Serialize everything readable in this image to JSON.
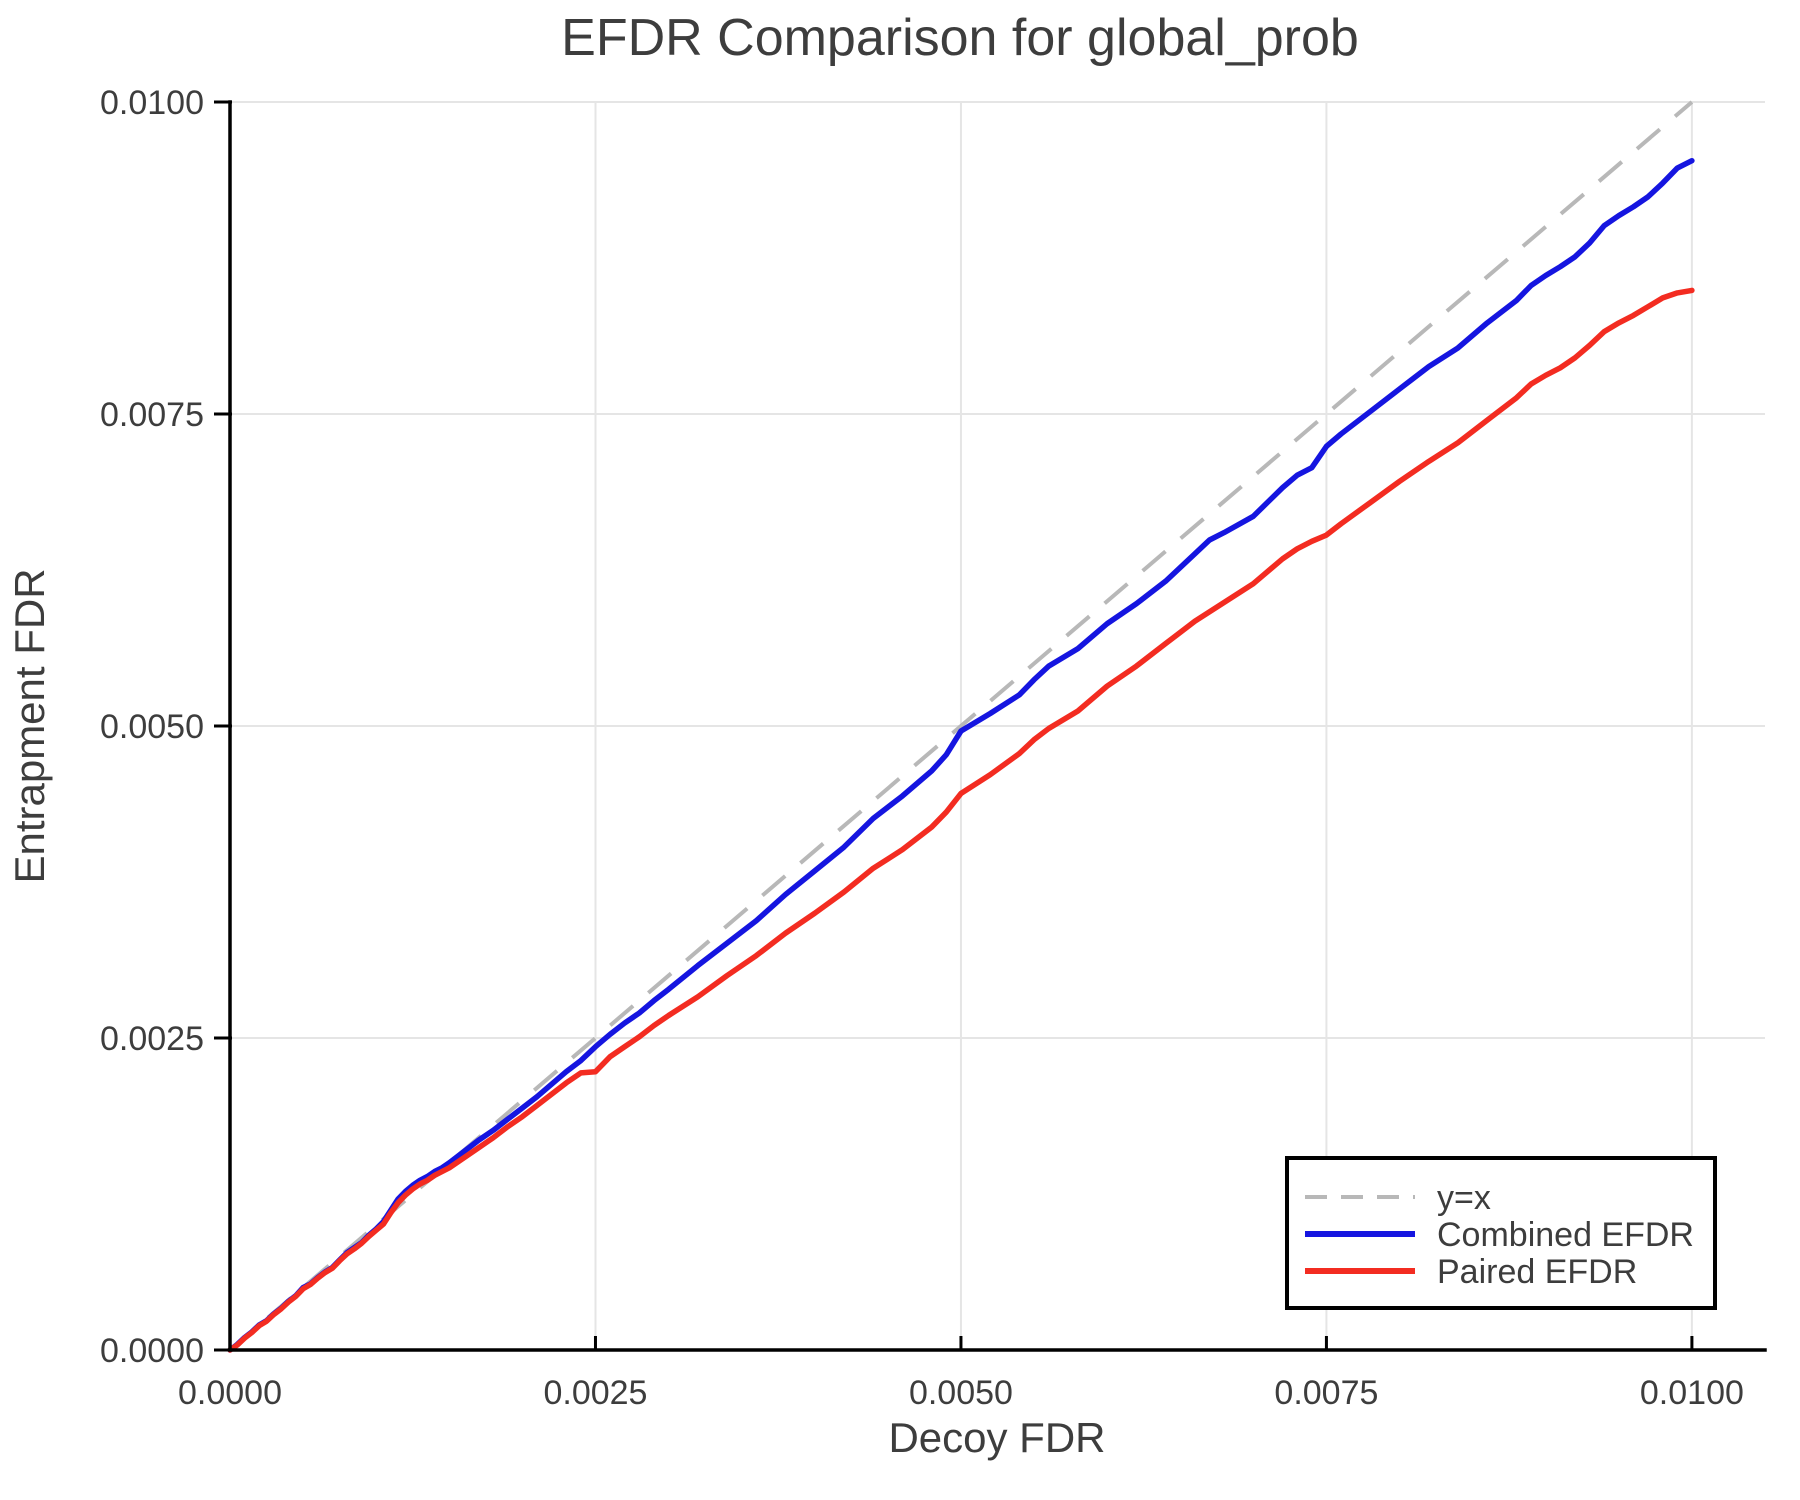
{
  "chart_data": {
    "type": "line",
    "title": "EFDR Comparison for global_prob",
    "xlabel": "Decoy FDR",
    "ylabel": "Entrapment FDR",
    "xlim": [
      0.0,
      0.0105
    ],
    "ylim": [
      0.0,
      0.01
    ],
    "grid": true,
    "legend_position": "bottom-right",
    "x_ticks": {
      "values": [
        0.0,
        0.0025,
        0.005,
        0.0075,
        0.01
      ],
      "labels": [
        "0.0000",
        "0.0025",
        "0.0050",
        "0.0075",
        "0.0100"
      ]
    },
    "y_ticks": {
      "values": [
        0.0,
        0.0025,
        0.005,
        0.0075,
        0.01
      ],
      "labels": [
        "0.0000",
        "0.0025",
        "0.0050",
        "0.0075",
        "0.0100"
      ]
    },
    "colors": {
      "grid": "#e5e5e5",
      "spine": "#000000",
      "text": "#3d3d3d",
      "identity": "#b8b8b8",
      "combined": "#1515e0",
      "paired": "#f32c21",
      "legend_border": "#000000",
      "legend_bg": "#ffffff"
    },
    "series": [
      {
        "name": "y=x",
        "style": "dashed",
        "color": "#b8b8b8",
        "points": [
          [
            0.0,
            0.0
          ],
          [
            0.01,
            0.01
          ]
        ]
      },
      {
        "name": "Combined EFDR",
        "style": "solid",
        "color": "#1515e0",
        "points": [
          [
            0.0,
            0.0
          ],
          [
            5e-05,
            4.5e-05
          ],
          [
            0.0001,
            0.0001
          ],
          [
            0.00015,
            0.000145
          ],
          [
            0.0002,
            0.0002
          ],
          [
            0.00025,
            0.000235
          ],
          [
            0.0003,
            0.00029
          ],
          [
            0.00035,
            0.000335
          ],
          [
            0.0004,
            0.00039
          ],
          [
            0.00045,
            0.000435
          ],
          [
            0.0005,
            0.0005
          ],
          [
            0.00055,
            0.00053
          ],
          [
            0.0006,
            0.00058
          ],
          [
            0.00065,
            0.000625
          ],
          [
            0.0007,
            0.00066
          ],
          [
            0.00075,
            0.00072
          ],
          [
            0.0008,
            0.00078
          ],
          [
            0.00085,
            0.00082
          ],
          [
            0.0009,
            0.00086
          ],
          [
            0.00095,
            0.00092
          ],
          [
            0.001,
            0.00097
          ],
          [
            0.00105,
            0.00103
          ],
          [
            0.0011,
            0.00112
          ],
          [
            0.00115,
            0.00121
          ],
          [
            0.0012,
            0.00127
          ],
          [
            0.00125,
            0.00132
          ],
          [
            0.0013,
            0.00136
          ],
          [
            0.00135,
            0.00139
          ],
          [
            0.0014,
            0.00143
          ],
          [
            0.00145,
            0.00146
          ],
          [
            0.0015,
            0.0015
          ],
          [
            0.0016,
            0.00159
          ],
          [
            0.0017,
            0.00168
          ],
          [
            0.0018,
            0.00176
          ],
          [
            0.0019,
            0.00185
          ],
          [
            0.002,
            0.00194
          ],
          [
            0.0021,
            0.00203
          ],
          [
            0.0022,
            0.00213
          ],
          [
            0.0023,
            0.00223
          ],
          [
            0.0024,
            0.00232
          ],
          [
            0.0025,
            0.00243
          ],
          [
            0.0026,
            0.00253
          ],
          [
            0.0027,
            0.00262
          ],
          [
            0.0028,
            0.0027
          ],
          [
            0.0029,
            0.0028
          ],
          [
            0.003,
            0.00289
          ],
          [
            0.0032,
            0.00308
          ],
          [
            0.0034,
            0.00326
          ],
          [
            0.0036,
            0.00344
          ],
          [
            0.0038,
            0.00365
          ],
          [
            0.004,
            0.00384
          ],
          [
            0.0042,
            0.00403
          ],
          [
            0.0044,
            0.00426
          ],
          [
            0.0046,
            0.00444
          ],
          [
            0.0048,
            0.00464
          ],
          [
            0.0049,
            0.00477
          ],
          [
            0.005,
            0.00496
          ],
          [
            0.0052,
            0.0051
          ],
          [
            0.0054,
            0.00525
          ],
          [
            0.0055,
            0.00537
          ],
          [
            0.0056,
            0.00548
          ],
          [
            0.0058,
            0.00562
          ],
          [
            0.006,
            0.00582
          ],
          [
            0.0062,
            0.00598
          ],
          [
            0.0064,
            0.00616
          ],
          [
            0.0066,
            0.00638
          ],
          [
            0.0067,
            0.00649
          ],
          [
            0.0068,
            0.00655
          ],
          [
            0.007,
            0.00668
          ],
          [
            0.0072,
            0.00691
          ],
          [
            0.0073,
            0.00701
          ],
          [
            0.0074,
            0.00707
          ],
          [
            0.0075,
            0.00724
          ],
          [
            0.0076,
            0.00734
          ],
          [
            0.0078,
            0.00752
          ],
          [
            0.008,
            0.0077
          ],
          [
            0.0082,
            0.00788
          ],
          [
            0.0084,
            0.00803
          ],
          [
            0.0086,
            0.00823
          ],
          [
            0.0088,
            0.00841
          ],
          [
            0.0089,
            0.00853
          ],
          [
            0.009,
            0.00861
          ],
          [
            0.0091,
            0.00868
          ],
          [
            0.0092,
            0.00876
          ],
          [
            0.0093,
            0.00887
          ],
          [
            0.0094,
            0.00901
          ],
          [
            0.0095,
            0.00909
          ],
          [
            0.0096,
            0.00916
          ],
          [
            0.0097,
            0.00924
          ],
          [
            0.0098,
            0.00935
          ],
          [
            0.0099,
            0.00947
          ],
          [
            0.01,
            0.00953
          ]
        ]
      },
      {
        "name": "Paired EFDR",
        "style": "solid",
        "color": "#f32c21",
        "points": [
          [
            0.0,
            0.0
          ],
          [
            5e-05,
            4e-05
          ],
          [
            0.0001,
            9.5e-05
          ],
          [
            0.00015,
            0.00014
          ],
          [
            0.0002,
            0.000195
          ],
          [
            0.00025,
            0.00023
          ],
          [
            0.0003,
            0.000285
          ],
          [
            0.00035,
            0.00033
          ],
          [
            0.0004,
            0.000385
          ],
          [
            0.00045,
            0.00043
          ],
          [
            0.0005,
            0.00049
          ],
          [
            0.00055,
            0.000525
          ],
          [
            0.0006,
            0.000575
          ],
          [
            0.00065,
            0.00062
          ],
          [
            0.0007,
            0.000655
          ],
          [
            0.00075,
            0.000715
          ],
          [
            0.0008,
            0.00077
          ],
          [
            0.00085,
            0.00081
          ],
          [
            0.0009,
            0.000855
          ],
          [
            0.00095,
            0.00091
          ],
          [
            0.001,
            0.00096
          ],
          [
            0.00105,
            0.00101
          ],
          [
            0.0011,
            0.0011
          ],
          [
            0.00115,
            0.00118
          ],
          [
            0.0012,
            0.00124
          ],
          [
            0.00125,
            0.00129
          ],
          [
            0.0013,
            0.00133
          ],
          [
            0.00135,
            0.00136
          ],
          [
            0.0014,
            0.0014
          ],
          [
            0.0015,
            0.00146
          ],
          [
            0.0016,
            0.00154
          ],
          [
            0.0017,
            0.00162
          ],
          [
            0.0018,
            0.0017
          ],
          [
            0.0019,
            0.00179
          ],
          [
            0.002,
            0.00187
          ],
          [
            0.0021,
            0.00196
          ],
          [
            0.0022,
            0.00205
          ],
          [
            0.0023,
            0.00214
          ],
          [
            0.0024,
            0.00222
          ],
          [
            0.0025,
            0.00223
          ],
          [
            0.0026,
            0.00235
          ],
          [
            0.0027,
            0.00243
          ],
          [
            0.0028,
            0.00251
          ],
          [
            0.0029,
            0.0026
          ],
          [
            0.003,
            0.00268
          ],
          [
            0.0032,
            0.00283
          ],
          [
            0.0034,
            0.003
          ],
          [
            0.0036,
            0.00316
          ],
          [
            0.0038,
            0.00334
          ],
          [
            0.004,
            0.0035
          ],
          [
            0.0042,
            0.00367
          ],
          [
            0.0044,
            0.00386
          ],
          [
            0.0046,
            0.00401
          ],
          [
            0.0048,
            0.00419
          ],
          [
            0.0049,
            0.00431
          ],
          [
            0.005,
            0.00446
          ],
          [
            0.0052,
            0.00461
          ],
          [
            0.0054,
            0.00478
          ],
          [
            0.0055,
            0.00489
          ],
          [
            0.0056,
            0.00498
          ],
          [
            0.0058,
            0.00512
          ],
          [
            0.006,
            0.00532
          ],
          [
            0.0062,
            0.00548
          ],
          [
            0.0064,
            0.00566
          ],
          [
            0.0066,
            0.00584
          ],
          [
            0.0068,
            0.00599
          ],
          [
            0.007,
            0.00614
          ],
          [
            0.0072,
            0.00634
          ],
          [
            0.0073,
            0.00642
          ],
          [
            0.0074,
            0.00648
          ],
          [
            0.0075,
            0.00653
          ],
          [
            0.0076,
            0.00662
          ],
          [
            0.0078,
            0.00679
          ],
          [
            0.008,
            0.00696
          ],
          [
            0.0082,
            0.00712
          ],
          [
            0.0084,
            0.00727
          ],
          [
            0.0086,
            0.00745
          ],
          [
            0.0088,
            0.00763
          ],
          [
            0.0089,
            0.00774
          ],
          [
            0.009,
            0.00781
          ],
          [
            0.0091,
            0.00787
          ],
          [
            0.0092,
            0.00795
          ],
          [
            0.0093,
            0.00805
          ],
          [
            0.0094,
            0.00816
          ],
          [
            0.0095,
            0.00823
          ],
          [
            0.0096,
            0.00829
          ],
          [
            0.0097,
            0.00836
          ],
          [
            0.0098,
            0.00843
          ],
          [
            0.0099,
            0.00847
          ],
          [
            0.01,
            0.00849
          ]
        ]
      }
    ],
    "legend": {
      "entries": [
        "y=x",
        "Combined EFDR",
        "Paired EFDR"
      ]
    }
  }
}
